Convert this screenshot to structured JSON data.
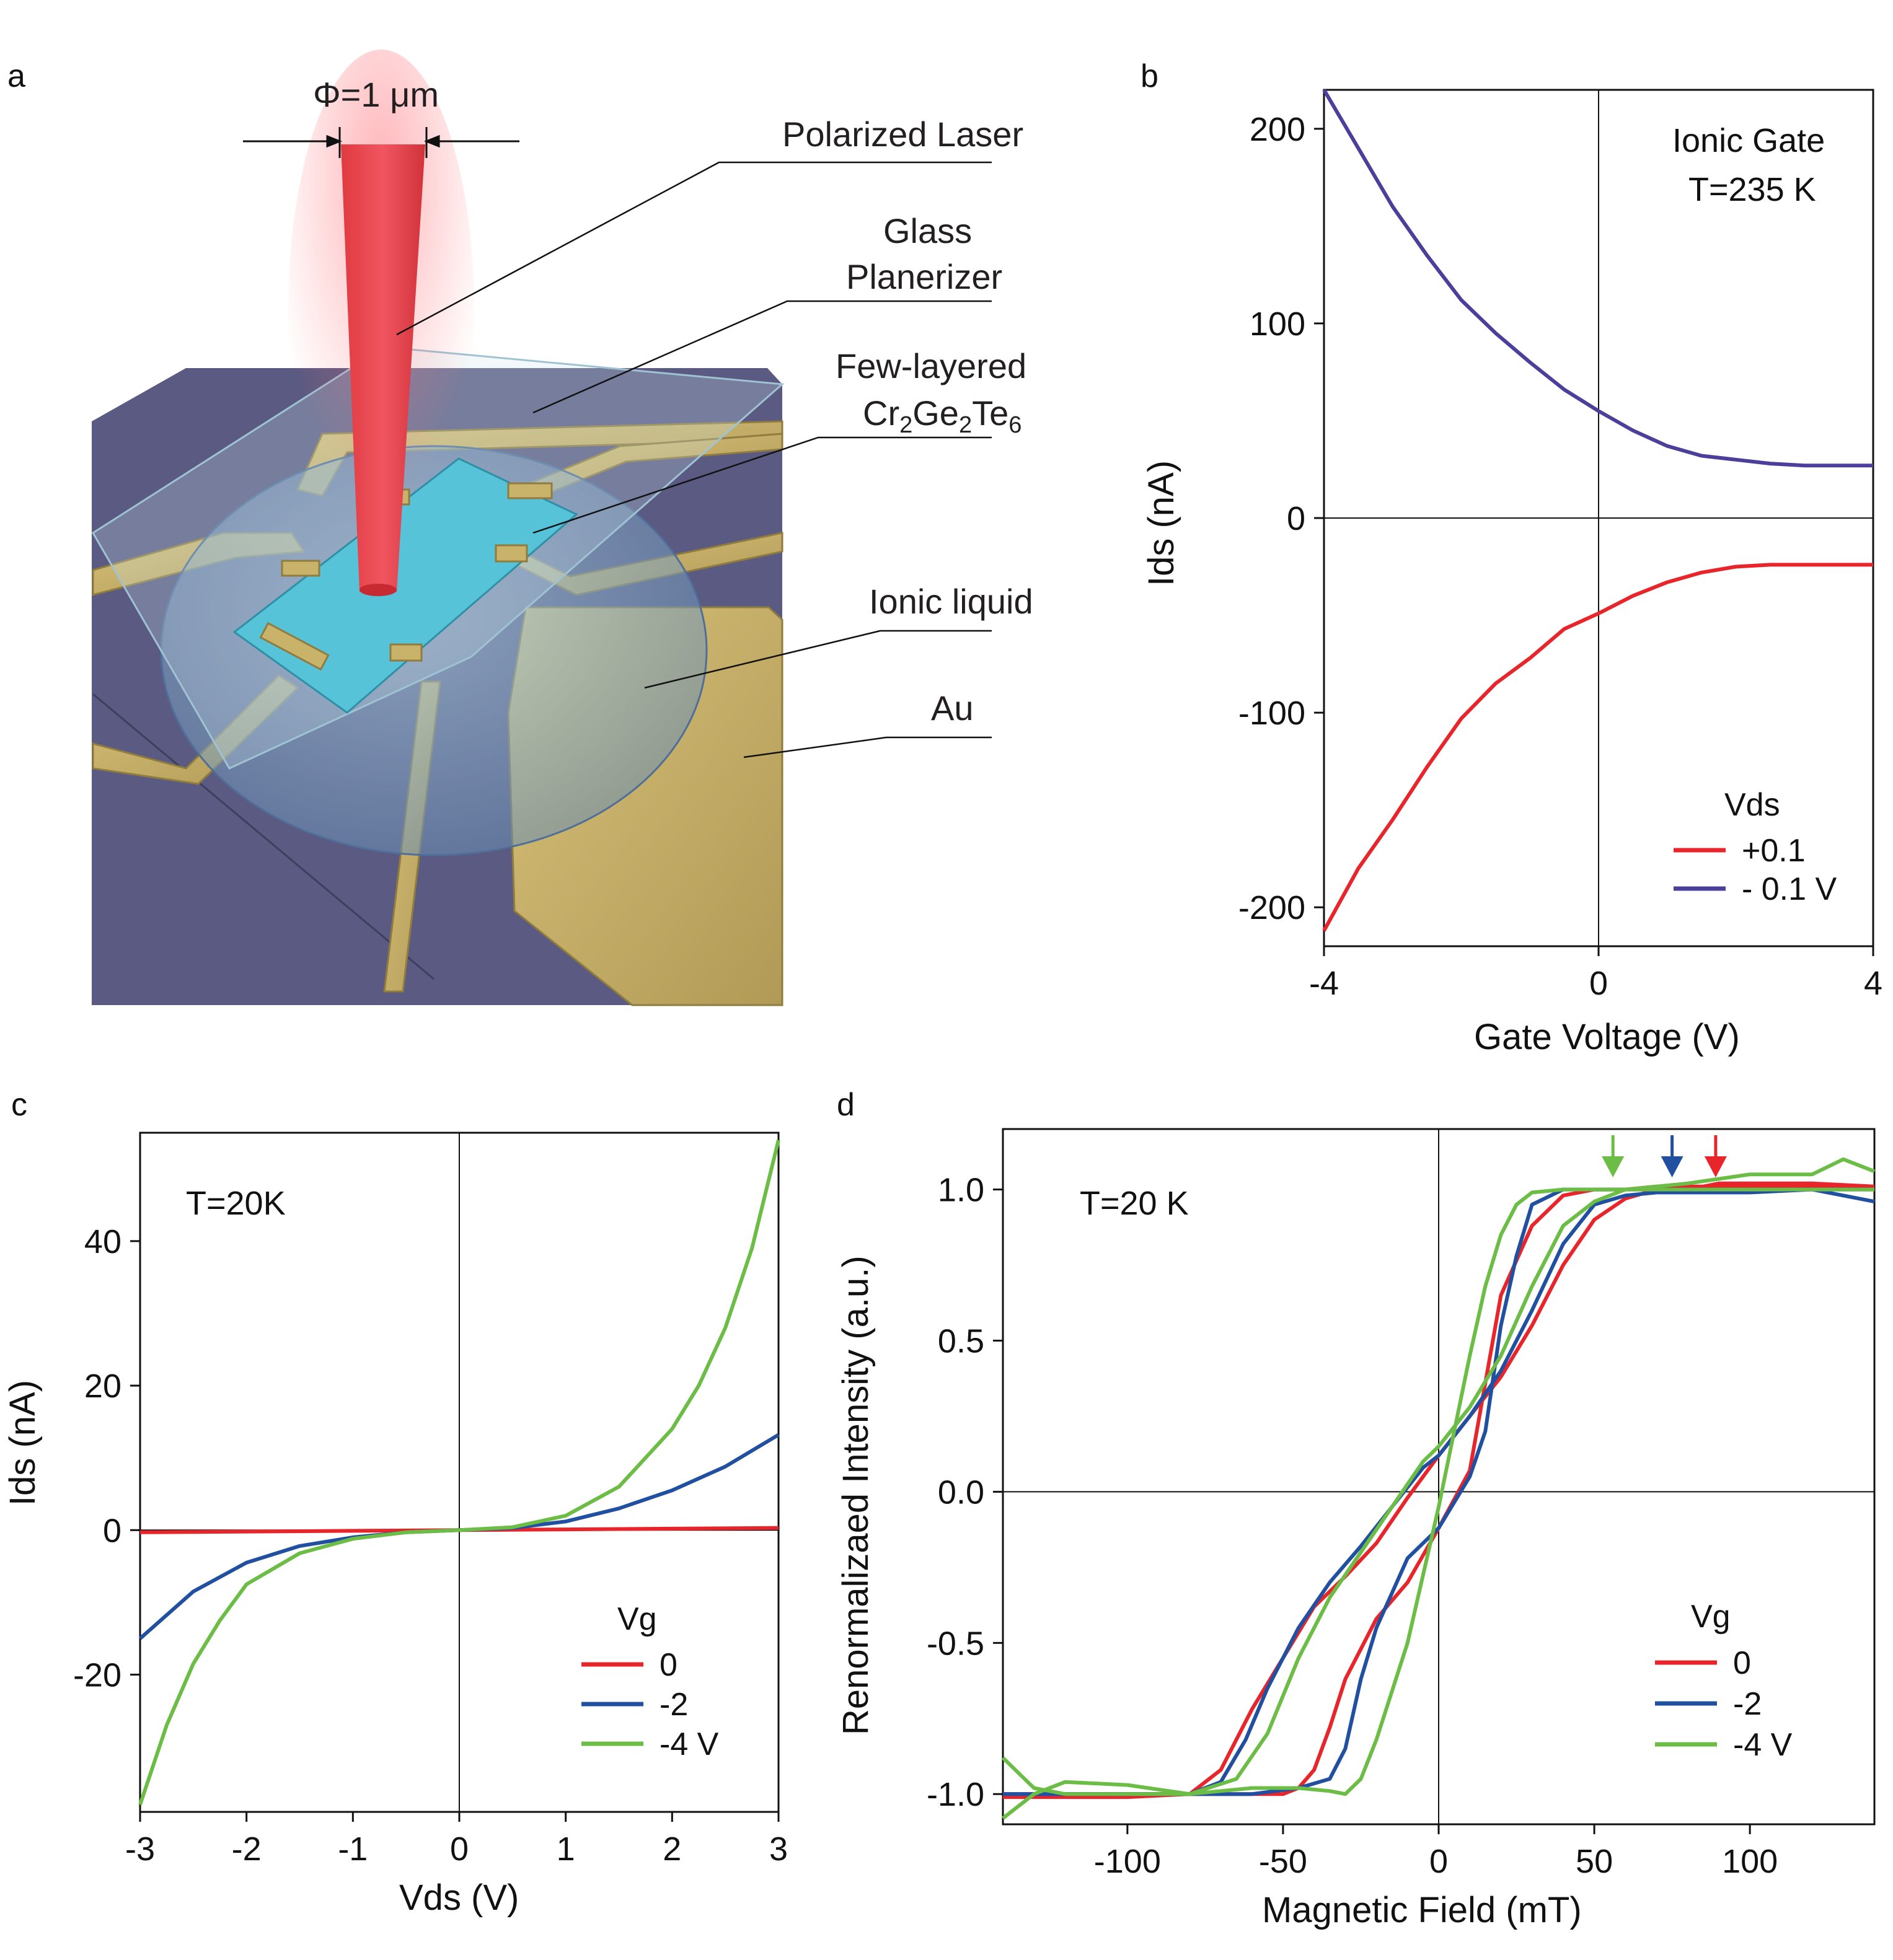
{
  "panels": {
    "a": {
      "letter": "a",
      "beam_label": "Φ=1 μm",
      "labels": [
        "Polarized Laser",
        "Glass",
        "Planerizer",
        "Few-layered",
        "Cr2Ge2Te6",
        "Ionic liquid",
        "Au"
      ],
      "colors": {
        "substrate": "#5a5a82",
        "au": "#c9b36a",
        "flake": "#56c3d9",
        "laser": "#e8434a",
        "liquid": "#8fb9d6"
      }
    },
    "b": {
      "letter": "b"
    },
    "c": {
      "letter": "c"
    },
    "d": {
      "letter": "d"
    }
  },
  "chart_data": [
    {
      "panel": "b",
      "type": "line",
      "xlabel": "Gate Voltage (V)",
      "ylabel": "Ids (nA)",
      "xlim": [
        -4,
        4
      ],
      "ylim": [
        -220,
        220
      ],
      "xticks": [
        -4,
        0,
        4
      ],
      "xtick_labels": [
        "-4",
        "0",
        "4"
      ],
      "yticks": [
        -200,
        -100,
        0,
        100,
        200
      ],
      "ytick_labels": [
        "-200",
        "-100",
        "0",
        "100",
        "200"
      ],
      "annotations": [
        "Ionic Gate",
        "T=235 K"
      ],
      "legend_title": "Vds",
      "legend_position": "bottom-right",
      "series": [
        {
          "name": "+0.1",
          "color": "#e8252b",
          "x": [
            -4,
            -3.5,
            -3,
            -2.5,
            -2,
            -1.5,
            -1,
            -0.5,
            0,
            0.5,
            1,
            1.5,
            2,
            2.5,
            3,
            3.5,
            4
          ],
          "y": [
            -212,
            -180,
            -155,
            -128,
            -103,
            -85,
            -72,
            -57,
            -49,
            -40,
            -33,
            -28,
            -25,
            -24,
            -24,
            -24,
            -24
          ]
        },
        {
          "name": "- 0.1 V",
          "color": "#4a3f9a",
          "x": [
            -4,
            -3.5,
            -3,
            -2.5,
            -2,
            -1.5,
            -1,
            -0.5,
            0,
            0.5,
            1,
            1.5,
            2,
            2.5,
            3,
            3.5,
            4
          ],
          "y": [
            220,
            190,
            160,
            135,
            112,
            95,
            80,
            66,
            55,
            45,
            37,
            32,
            30,
            28,
            27,
            27,
            27
          ]
        }
      ]
    },
    {
      "panel": "c",
      "type": "line",
      "xlabel": "Vds (V)",
      "ylabel": "Ids (nA)",
      "xlim": [
        -3,
        3
      ],
      "ylim": [
        -39,
        55
      ],
      "xticks": [
        -3,
        -2,
        -1,
        0,
        1,
        2,
        3
      ],
      "xtick_labels": [
        "-3",
        "-2",
        "-1",
        "0",
        "1",
        "2",
        "3"
      ],
      "yticks": [
        -20,
        0,
        20,
        40
      ],
      "ytick_labels": [
        "-20",
        "0",
        "20",
        "40"
      ],
      "annotations": [
        "T=20K"
      ],
      "legend_title": "Vg",
      "legend_position": "bottom-right",
      "series": [
        {
          "name": "0",
          "color": "#e8252b",
          "x": [
            -3,
            -2,
            -1,
            0,
            1,
            2,
            3
          ],
          "y": [
            -0.3,
            -0.2,
            -0.1,
            0,
            0.1,
            0.2,
            0.3
          ]
        },
        {
          "name": "-2",
          "color": "#2150a0",
          "x": [
            -3,
            -2.5,
            -2,
            -1.5,
            -1,
            -0.5,
            0,
            0.5,
            1,
            1.5,
            2,
            2.5,
            3
          ],
          "y": [
            -15,
            -8.5,
            -4.5,
            -2.2,
            -1,
            -0.3,
            0,
            0.3,
            1.2,
            3,
            5.5,
            8.8,
            13.2
          ]
        },
        {
          "name": "-4 V",
          "color": "#6cbd45",
          "x": [
            -3,
            -2.75,
            -2.5,
            -2.25,
            -2,
            -1.5,
            -1,
            -0.5,
            0,
            0.5,
            1,
            1.5,
            2,
            2.25,
            2.5,
            2.75,
            3
          ],
          "y": [
            -38,
            -27,
            -18.5,
            -12.5,
            -7.5,
            -3.2,
            -1.2,
            -0.3,
            0,
            0.4,
            2,
            6,
            14,
            20,
            28,
            39,
            54
          ]
        }
      ]
    },
    {
      "panel": "d",
      "type": "line",
      "xlabel": "Magnetic Field (mT)",
      "ylabel": "Renormalizaed Intensity (a.u.)",
      "xlim": [
        -140,
        140
      ],
      "ylim": [
        -1.1,
        1.2
      ],
      "xticks": [
        -100,
        -50,
        0,
        50,
        100
      ],
      "xtick_labels": [
        "-100",
        "-50",
        "0",
        "50",
        "100"
      ],
      "yticks": [
        -1.0,
        -0.5,
        0.0,
        0.5,
        1.0
      ],
      "ytick_labels": [
        "-1.0",
        "-0.5",
        "0.0",
        "0.5",
        "1.0"
      ],
      "annotations": [
        "T=20 K"
      ],
      "arrows": [
        {
          "x": 56,
          "color": "#6cbd45"
        },
        {
          "x": 75,
          "color": "#2150a0"
        },
        {
          "x": 89,
          "color": "#e8252b"
        }
      ],
      "legend_title": "Vg",
      "legend_position": "bottom-right",
      "series": [
        {
          "name": "0",
          "color": "#e8252b",
          "branches": [
            {
              "x": [
                -140,
                -120,
                -100,
                -80,
                -70,
                -60,
                -50,
                -40,
                -30,
                -20,
                -10,
                0,
                10,
                20,
                30,
                40,
                50,
                60,
                70,
                80,
                90,
                100,
                120,
                140
              ],
              "y": [
                -1.0,
                -1.0,
                -1.0,
                -1.0,
                -0.92,
                -0.72,
                -0.55,
                -0.38,
                -0.28,
                -0.17,
                -0.02,
                0.12,
                0.25,
                0.38,
                0.55,
                0.75,
                0.9,
                0.97,
                1.0,
                1.0,
                1.02,
                1.02,
                1.02,
                1.01
              ]
            },
            {
              "x": [
                -140,
                -120,
                -100,
                -80,
                -60,
                -50,
                -45,
                -40,
                -35,
                -30,
                -20,
                -10,
                0,
                10,
                20,
                30,
                40,
                50,
                60,
                70,
                80,
                100,
                120,
                140
              ],
              "y": [
                -1.01,
                -1.01,
                -1.01,
                -1.0,
                -1.0,
                -1.0,
                -0.98,
                -0.92,
                -0.78,
                -0.62,
                -0.42,
                -0.3,
                -0.12,
                0.07,
                0.65,
                0.88,
                0.98,
                1.0,
                1.0,
                1.01,
                1.01,
                1.01,
                1.01,
                1.0
              ]
            }
          ]
        },
        {
          "name": "-2",
          "color": "#2150a0",
          "branches": [
            {
              "x": [
                -140,
                -120,
                -100,
                -80,
                -70,
                -62,
                -55,
                -45,
                -35,
                -25,
                -15,
                -5,
                0,
                10,
                20,
                30,
                40,
                50,
                60,
                70,
                80,
                100,
                120,
                140
              ],
              "y": [
                -1.0,
                -1.0,
                -1.0,
                -1.0,
                -0.96,
                -0.82,
                -0.65,
                -0.45,
                -0.3,
                -0.18,
                -0.05,
                0.08,
                0.12,
                0.25,
                0.4,
                0.6,
                0.82,
                0.95,
                0.98,
                0.99,
                0.99,
                0.99,
                1.0,
                0.96
              ]
            },
            {
              "x": [
                -140,
                -120,
                -100,
                -80,
                -60,
                -45,
                -35,
                -30,
                -25,
                -20,
                -10,
                0,
                10,
                15,
                20,
                25,
                30,
                40,
                50,
                60,
                80,
                100,
                120,
                140
              ],
              "y": [
                -1.0,
                -1.0,
                -1.0,
                -1.0,
                -1.0,
                -0.98,
                -0.95,
                -0.85,
                -0.62,
                -0.45,
                -0.22,
                -0.12,
                0.05,
                0.2,
                0.55,
                0.78,
                0.95,
                1.0,
                1.0,
                1.0,
                1.0,
                1.0,
                1.0,
                1.0
              ]
            }
          ]
        },
        {
          "name": "-4 V",
          "color": "#6cbd45",
          "branches": [
            {
              "x": [
                -140,
                -130,
                -120,
                -100,
                -80,
                -65,
                -55,
                -45,
                -35,
                -25,
                -15,
                -5,
                0,
                10,
                20,
                30,
                40,
                50,
                60,
                80,
                100,
                120,
                130,
                140
              ],
              "y": [
                -1.08,
                -1.0,
                -0.96,
                -0.97,
                -1.0,
                -0.95,
                -0.8,
                -0.55,
                -0.35,
                -0.2,
                -0.05,
                0.1,
                0.15,
                0.28,
                0.45,
                0.68,
                0.88,
                0.96,
                1.0,
                1.02,
                1.05,
                1.05,
                1.1,
                1.06
              ]
            },
            {
              "x": [
                -140,
                -130,
                -120,
                -100,
                -80,
                -60,
                -45,
                -35,
                -30,
                -25,
                -20,
                -10,
                0,
                5,
                10,
                15,
                20,
                25,
                30,
                40,
                60,
                80,
                100,
                140
              ],
              "y": [
                -0.88,
                -0.98,
                -1.0,
                -1.0,
                -1.0,
                -0.98,
                -0.98,
                -0.99,
                -1.0,
                -0.95,
                -0.82,
                -0.5,
                -0.05,
                0.2,
                0.45,
                0.68,
                0.85,
                0.95,
                0.99,
                1.0,
                1.0,
                1.0,
                1.0,
                1.0
              ]
            }
          ]
        }
      ]
    }
  ]
}
